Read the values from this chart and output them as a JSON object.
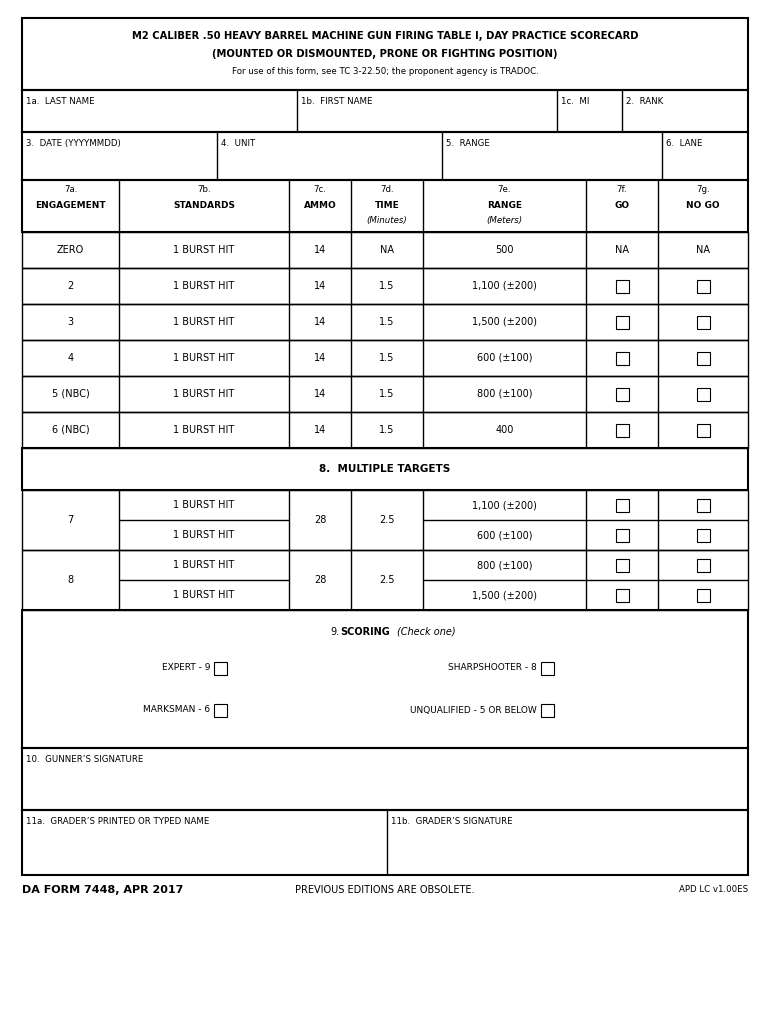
{
  "title_line1": "M2 CALIBER .50 HEAVY BARREL MACHINE GUN FIRING TABLE I, DAY PRACTICE SCORECARD",
  "title_line2": "(MOUNTED OR DISMOUNTED, PRONE OR FIGHTING POSITION)",
  "title_line3": "For use of this form, see TC 3-22.50; the proponent agency is TRADOC.",
  "field1a": "1a.  LAST NAME",
  "field1b": "1b.  FIRST NAME",
  "field1c": "1c.  MI",
  "field2": "2.  RANK",
  "field3": "3.  DATE (YYYYMMDD)",
  "field4": "4.  UNIT",
  "field5": "5.  RANGE",
  "field6": "6.  LANE",
  "rows": [
    {
      "eng": "ZERO",
      "std": "1 BURST HIT",
      "ammo": "14",
      "time": "NA",
      "range": "500",
      "go": "NA",
      "nogo": "NA",
      "checkbox": false
    },
    {
      "eng": "2",
      "std": "1 BURST HIT",
      "ammo": "14",
      "time": "1.5",
      "range": "1,100 (±200)",
      "checkbox": true
    },
    {
      "eng": "3",
      "std": "1 BURST HIT",
      "ammo": "14",
      "time": "1.5",
      "range": "1,500 (±200)",
      "checkbox": true
    },
    {
      "eng": "4",
      "std": "1 BURST HIT",
      "ammo": "14",
      "time": "1.5",
      "range": "600 (±100)",
      "checkbox": true
    },
    {
      "eng": "5 (NBC)",
      "std": "1 BURST HIT",
      "ammo": "14",
      "time": "1.5",
      "range": "800 (±100)",
      "checkbox": true
    },
    {
      "eng": "6 (NBC)",
      "std": "1 BURST HIT",
      "ammo": "14",
      "time": "1.5",
      "range": "400",
      "checkbox": true
    }
  ],
  "section8_title": "8.  MULTIPLE TARGETS",
  "multi_rows": [
    {
      "eng": "7",
      "rows": [
        {
          "std": "1 BURST HIT",
          "range": "1,100 (±200)"
        },
        {
          "std": "1 BURST HIT",
          "range": "600 (±100)"
        }
      ],
      "ammo": "28",
      "time": "2.5"
    },
    {
      "eng": "8",
      "rows": [
        {
          "std": "1 BURST HIT",
          "range": "800 (±100)"
        },
        {
          "std": "1 BURST HIT",
          "range": "1,500 (±200)"
        }
      ],
      "ammo": "28",
      "time": "2.5"
    }
  ],
  "section9_label_bold": "SCORING",
  "section9_label_italic": "(Check one)",
  "field10": "10.  GUNNER’S SIGNATURE",
  "field11a": "11a.  GRADER’S PRINTED OR TYPED NAME",
  "field11b": "11b.  GRADER’S SIGNATURE",
  "footer_left": "DA FORM 7448, APR 2017",
  "footer_center": "PREVIOUS EDITIONS ARE OBSOLETE.",
  "footer_right": "APD LC v1.00ES",
  "bg_color": "#ffffff",
  "border_color": "#000000",
  "text_color": "#000000"
}
